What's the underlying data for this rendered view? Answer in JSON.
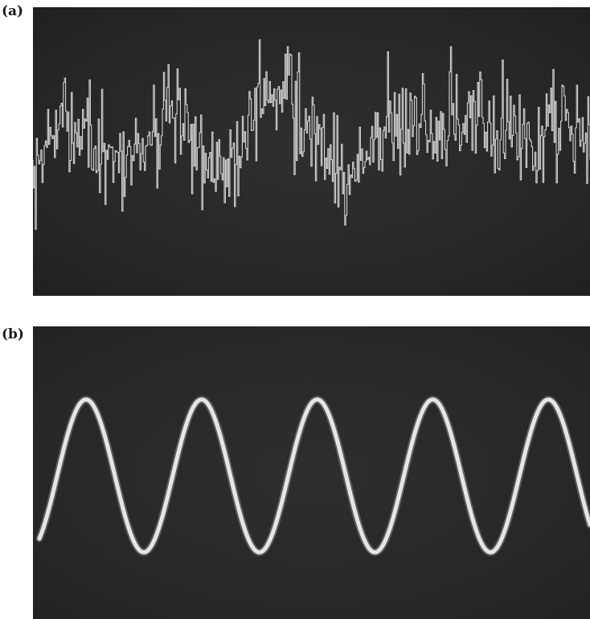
{
  "panels": [
    {
      "label": "(a)",
      "trace": "noisy-signal"
    },
    {
      "label": "(b)",
      "trace": "clean-sine-wave"
    }
  ],
  "colors": {
    "screen": "#2a2a2a",
    "trace": "#e6e6e6",
    "background": "#ffffff",
    "label": "#1a1a1a"
  },
  "sine": {
    "cycles_visible": 4.75
  }
}
